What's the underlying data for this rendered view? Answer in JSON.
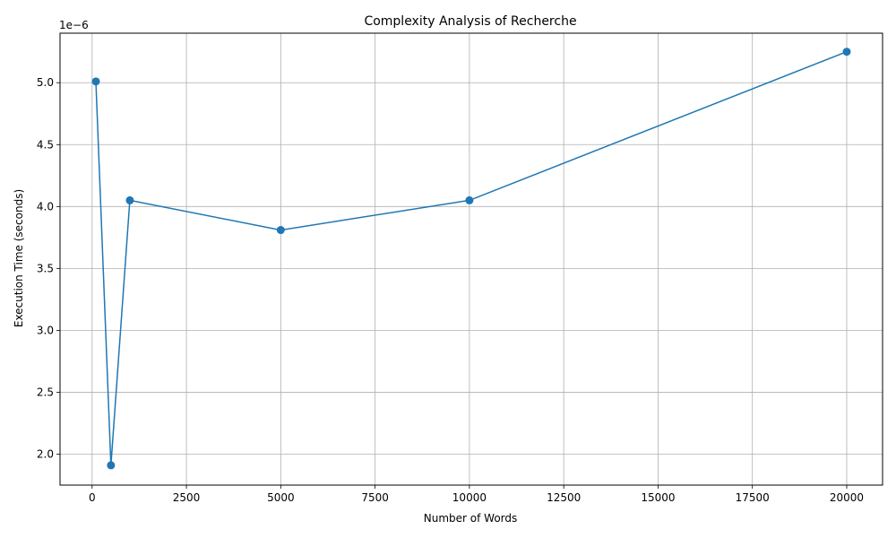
{
  "chart_data": {
    "type": "line",
    "title": "Complexity Analysis of Recherche",
    "xlabel": "Number of Words",
    "ylabel": "Execution Time (seconds)",
    "y_offset_label": "1e−6",
    "y_scale_factor": 1e-06,
    "x": [
      100,
      500,
      1000,
      5000,
      10000,
      20000
    ],
    "y": [
      5.01e-06,
      1.91e-06,
      4.05e-06,
      3.81e-06,
      4.05e-06,
      5.25e-06
    ],
    "xlim": [
      -850,
      20950
    ],
    "ylim": [
      1.75e-06,
      5.4e-06
    ],
    "x_ticks": [
      0,
      2500,
      5000,
      7500,
      10000,
      12500,
      15000,
      17500,
      20000
    ],
    "x_tick_labels": [
      "0",
      "2500",
      "5000",
      "7500",
      "10000",
      "12500",
      "15000",
      "17500",
      "20000"
    ],
    "y_ticks": [
      2e-06,
      2.5e-06,
      3e-06,
      3.5e-06,
      4e-06,
      4.5e-06,
      5e-06
    ],
    "y_tick_labels": [
      "2.0",
      "2.5",
      "3.0",
      "3.5",
      "4.0",
      "4.5",
      "5.0"
    ],
    "grid": true,
    "marker": "circle",
    "line_color": "#1f77b4",
    "grid_color": "#b0b0b0"
  }
}
